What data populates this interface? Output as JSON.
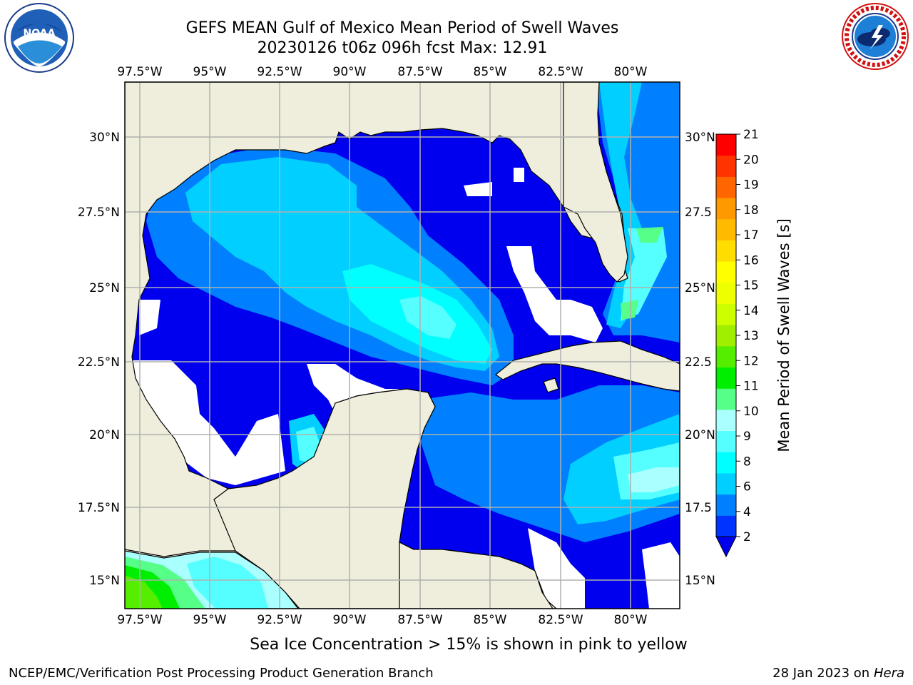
{
  "title": "GEFS MEAN Gulf of Mexico Mean Period of Swell Waves",
  "subtitle": "20230126 t06z 096h fcst   Max: 12.91",
  "colorbar": {
    "label": "Mean Period of Swell Waves [s]",
    "ticks": [
      "2",
      "4",
      "6",
      "8",
      "9",
      "10",
      "11",
      "12",
      "13",
      "14",
      "15",
      "16",
      "17",
      "18",
      "19",
      "20",
      "21"
    ],
    "colors": [
      "#0033ff",
      "#0080ff",
      "#00cfff",
      "#00ffff",
      "#55ffff",
      "#aaffff",
      "#55ff88",
      "#00ee00",
      "#55ee00",
      "#a0ee00",
      "#ccff00",
      "#eeff00",
      "#ffff00",
      "#ffdd00",
      "#ffbb00",
      "#ff9900",
      "#ff6600",
      "#ff3300",
      "#ff0000"
    ],
    "under_color": "#0000ee"
  },
  "axes": {
    "lon_labels": [
      "97.5°W",
      "95°W",
      "92.5°W",
      "90°W",
      "87.5°W",
      "85°W",
      "82.5°W",
      "80°W"
    ],
    "lat_labels_left": [
      "30°N",
      "27.5°N",
      "25°N",
      "22.5°N",
      "20°N",
      "17.5°N",
      "15°N"
    ],
    "lat_labels_right": [
      "30°N",
      "27.5",
      "25°N",
      "22.5",
      "20°N",
      "17.5",
      "15°N"
    ]
  },
  "legend_note": "Sea Ice Concentration > 15% is shown in pink to yellow",
  "footer": {
    "credit": "NCEP/EMC/Verification Post Processing Product Generation Branch",
    "date": "28 Jan 2023 on",
    "host": "Hera"
  },
  "logos": {
    "left": "noaa-logo",
    "right": "nws-logo"
  },
  "colors": {
    "land": "#efeedd",
    "grid": "#b0b0b0",
    "no_data": "#ffffff"
  }
}
